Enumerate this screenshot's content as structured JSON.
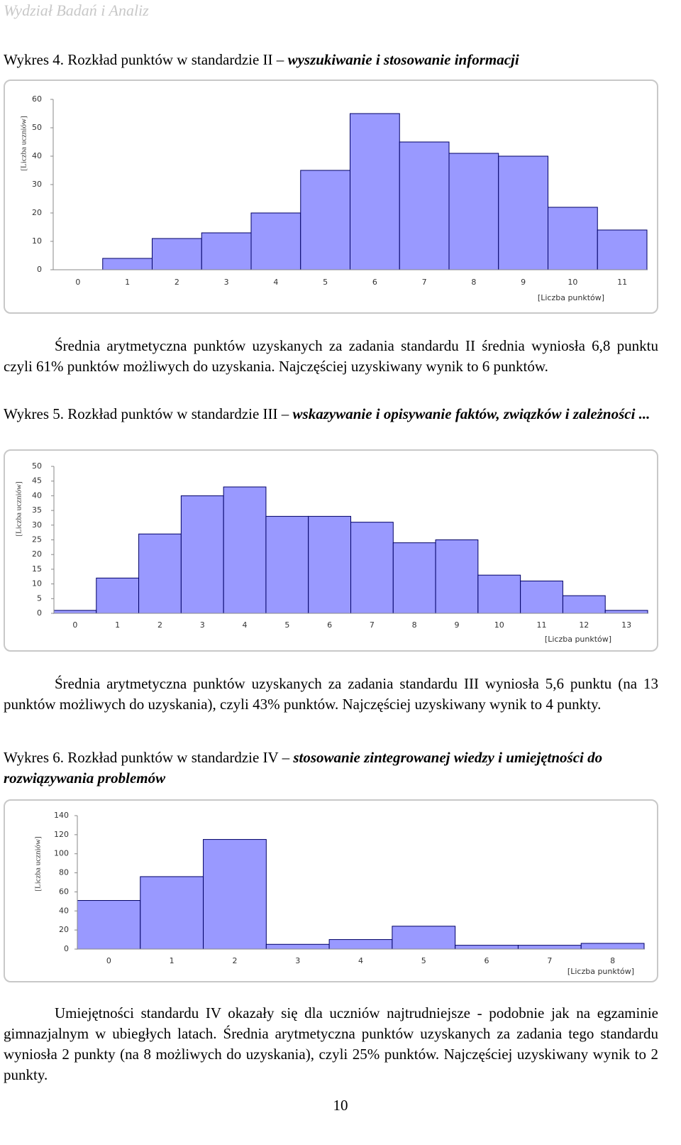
{
  "header": {
    "title": "Wydział Badań i Analiz"
  },
  "captions": [
    {
      "prefix": "Wykres 4. Rozkład punktów w standardzie II – ",
      "italic": "wyszukiwanie i stosowanie informacji"
    },
    {
      "prefix": "Wykres 5. Rozkład punktów w standardzie III – ",
      "italic": "wskazywanie i opisywanie faktów, związków i zależności ..."
    },
    {
      "prefix": "Wykres 6. Rozkład punktów w standardzie IV – ",
      "italic": "stosowanie zintegrowanej wiedzy i umiejętności do rozwiązywania problemów"
    }
  ],
  "paragraphs": [
    "Średnia arytmetyczna punktów uzyskanych za zadania standardu II średnia wyniosła 6,8 punktu czyli 61% punktów możliwych do uzyskania. Najczęściej uzyskiwany wynik to 6 punktów.",
    "Średnia arytmetyczna punktów uzyskanych za zadania standardu III wyniosła 5,6 punktu (na 13 punktów możliwych do uzyskania), czyli 43% punktów. Najczęściej uzyskiwany wynik to 4 punkty.",
    "Umiejętności standardu IV okazały się dla uczniów najtrudniejsze - podobnie jak na egzaminie gimnazjalnym w ubiegłych latach. Średnia arytmetyczna punktów uzyskanych za zadania tego standardu wyniosła 2 punkty (na 8 możliwych do uzyskania), czyli 25% punktów. Najczęściej uzyskiwany wynik to 2 punkty."
  ],
  "footer": {
    "page_number": "10"
  },
  "chart_data": [
    {
      "type": "bar",
      "x_label": "[Liczba punktów]",
      "y_label": "[Liczba uczniów]",
      "color": "#9999ff",
      "categories": [
        "0",
        "1",
        "2",
        "3",
        "4",
        "5",
        "6",
        "7",
        "8",
        "9",
        "10",
        "11"
      ],
      "values": [
        0,
        4,
        11,
        13,
        20,
        35,
        55,
        45,
        41,
        40,
        22,
        14
      ],
      "ylim": [
        0,
        60
      ],
      "yticks": [
        0,
        10,
        20,
        30,
        40,
        50,
        60
      ]
    },
    {
      "type": "bar",
      "x_label": "[Liczba punktów]",
      "y_label": "[Liczba uczniów]",
      "color": "#9999ff",
      "categories": [
        "0",
        "1",
        "2",
        "3",
        "4",
        "5",
        "6",
        "7",
        "8",
        "9",
        "10",
        "11",
        "12",
        "13"
      ],
      "values": [
        1,
        12,
        27,
        40,
        43,
        33,
        33,
        31,
        24,
        25,
        13,
        11,
        6,
        1
      ],
      "ylim": [
        0,
        50
      ],
      "yticks": [
        0,
        5,
        10,
        15,
        20,
        25,
        30,
        35,
        40,
        45,
        50
      ]
    },
    {
      "type": "bar",
      "x_label": "[Liczba punktów]",
      "y_label": "[Liczba uczniów]",
      "color": "#9999ff",
      "categories": [
        "0",
        "1",
        "2",
        "3",
        "4",
        "5",
        "6",
        "7",
        "8"
      ],
      "values": [
        51,
        76,
        115,
        5,
        10,
        24,
        4,
        4,
        6
      ],
      "ylim": [
        0,
        140
      ],
      "yticks": [
        0,
        20,
        40,
        60,
        80,
        100,
        120,
        140
      ]
    }
  ]
}
